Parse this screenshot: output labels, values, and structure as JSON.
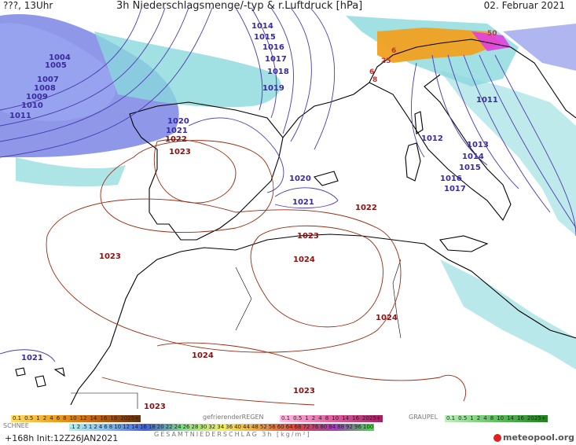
{
  "header": {
    "left": "???, 13Uhr",
    "title": "3h Niederschlagsmenge/-typ & r.Luftdruck [hPa]",
    "date": "02. Februar 2021"
  },
  "isobars_low": [
    "1014",
    "1015",
    "1016",
    "1017",
    "1018",
    "1019",
    "1004",
    "1005",
    "1007",
    "1008",
    "1009",
    "1010",
    "1011",
    "1020",
    "1021",
    "1011",
    "1012",
    "1013",
    "1014",
    "1015",
    "1016",
    "1017",
    "1020",
    "1021",
    "1021"
  ],
  "isobars_high": [
    "1022",
    "1023",
    "1022",
    "1023",
    "1023",
    "1024",
    "1024",
    "1024",
    "1023",
    "1023"
  ],
  "precip_labels": [
    "25",
    "6",
    "8",
    "50",
    "6"
  ],
  "legend": {
    "snow_title": "SCHNEE",
    "snow": [
      "0.1",
      "0.5",
      "1",
      "2",
      "4",
      "6",
      "8",
      "10",
      "12",
      "14",
      "16",
      "18",
      "2025+"
    ],
    "freezing_title": "gefrierenderREGEN",
    "freezing": [
      "0.1",
      "0.5",
      "1",
      "2",
      "4",
      "8",
      "10",
      "14",
      "16",
      "2025+"
    ],
    "graupel_title": "GRAUPEL",
    "graupel": [
      "0.1",
      "0.5",
      "1",
      "2",
      "4",
      "8",
      "10",
      "14",
      "16",
      "2025+"
    ],
    "total": [
      ".1",
      "2",
      ".5",
      "1",
      "2",
      "4",
      "6",
      "8",
      "10",
      "12",
      "14",
      "16",
      "18",
      "20",
      "22",
      "24",
      "26",
      "28",
      "30",
      "32",
      "34",
      "36",
      "40",
      "44",
      "48",
      "52",
      "56",
      "60",
      "64",
      "68",
      "72",
      "76",
      "80",
      "84",
      "88",
      "92",
      "96",
      "100"
    ],
    "total_title": "GESAMTNIEDERSCHLAG 3h [kg/m²]"
  },
  "footer": {
    "init": "+168h Init:12Z26JAN2021",
    "logo": "meteopool.org"
  },
  "colors": {
    "sea": "#ffffff",
    "coast": "#000000",
    "isobar_low": "#4a3ab0",
    "isobar_high": "#9a2a10",
    "rain_light": "#8ad8dc",
    "rain_blue": "#7a8ae8",
    "snow_orange": "#f0a020",
    "snow_magenta": "#e040e0"
  }
}
